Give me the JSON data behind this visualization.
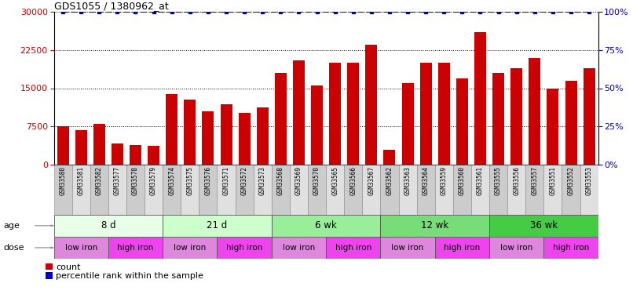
{
  "title": "GDS1055 / 1380962_at",
  "samples": [
    "GSM33580",
    "GSM33581",
    "GSM33582",
    "GSM33577",
    "GSM33578",
    "GSM33579",
    "GSM33574",
    "GSM33575",
    "GSM33576",
    "GSM33571",
    "GSM33572",
    "GSM33573",
    "GSM33568",
    "GSM33569",
    "GSM33570",
    "GSM33565",
    "GSM33566",
    "GSM33567",
    "GSM33562",
    "GSM33563",
    "GSM33564",
    "GSM33559",
    "GSM33560",
    "GSM33561",
    "GSM33555",
    "GSM33556",
    "GSM33557",
    "GSM33551",
    "GSM33552",
    "GSM33553"
  ],
  "counts": [
    7500,
    6800,
    8000,
    4200,
    3900,
    3700,
    13800,
    12800,
    10500,
    11800,
    10200,
    11200,
    18000,
    20500,
    15500,
    20000,
    20000,
    23500,
    3000,
    16000,
    20000,
    20000,
    17000,
    26000,
    18000,
    19000,
    21000,
    15000,
    16500,
    19000
  ],
  "percentile_rank": 100,
  "ylim_left": [
    0,
    30000
  ],
  "ylim_right": [
    0,
    100
  ],
  "yticks_left": [
    0,
    7500,
    15000,
    22500,
    30000
  ],
  "yticks_right": [
    0,
    25,
    50,
    75,
    100
  ],
  "bar_color": "#cc0000",
  "percentile_color": "#0000cc",
  "age_groups": [
    {
      "label": "8 d",
      "start": 0,
      "end": 6,
      "color": "#e8ffe8"
    },
    {
      "label": "21 d",
      "start": 6,
      "end": 12,
      "color": "#ccffcc"
    },
    {
      "label": "6 wk",
      "start": 12,
      "end": 18,
      "color": "#99ee99"
    },
    {
      "label": "12 wk",
      "start": 18,
      "end": 24,
      "color": "#77dd77"
    },
    {
      "label": "36 wk",
      "start": 24,
      "end": 30,
      "color": "#44cc44"
    }
  ],
  "dose_groups": [
    {
      "label": "low iron",
      "start": 0,
      "end": 3
    },
    {
      "label": "high iron",
      "start": 3,
      "end": 6
    },
    {
      "label": "low iron",
      "start": 6,
      "end": 9
    },
    {
      "label": "high iron",
      "start": 9,
      "end": 12
    },
    {
      "label": "low iron",
      "start": 12,
      "end": 15
    },
    {
      "label": "high iron",
      "start": 15,
      "end": 18
    },
    {
      "label": "low iron",
      "start": 18,
      "end": 21
    },
    {
      "label": "high iron",
      "start": 21,
      "end": 24
    },
    {
      "label": "low iron",
      "start": 24,
      "end": 27
    },
    {
      "label": "high iron",
      "start": 27,
      "end": 30
    }
  ],
  "dose_color_low": "#dd88dd",
  "dose_color_high": "#ee44ee",
  "age_label": "age",
  "dose_label": "dose",
  "legend_count": "count",
  "legend_percentile": "percentile rank within the sample",
  "background_color": "#ffffff",
  "tick_label_color_left": "#cc0000",
  "tick_label_color_right": "#0000cc",
  "sample_cell_color_odd": "#cccccc",
  "sample_cell_color_even": "#e0e0e0"
}
